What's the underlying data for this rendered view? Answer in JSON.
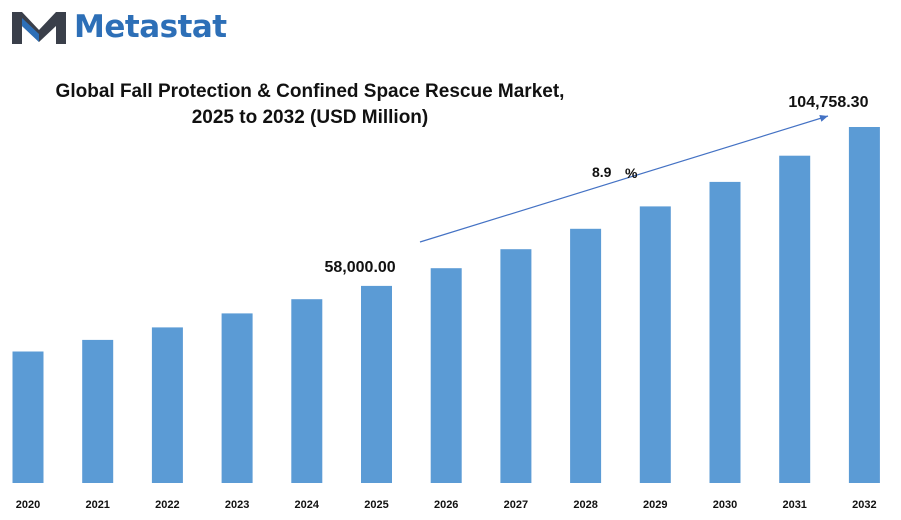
{
  "brand": {
    "name": "Metastat",
    "logo_icon": "metastat-m-logo-icon",
    "text_color": "#2d6fb7"
  },
  "chart_data": {
    "type": "bar",
    "title_lines": [
      "Global Fall Protection & Confined Space Rescue Market,",
      "2025 to 2032 (USD Million)"
    ],
    "categories": [
      "2020",
      "2021",
      "2022",
      "2023",
      "2024",
      "2025",
      "2026",
      "2027",
      "2028",
      "2029",
      "2030",
      "2031",
      "2032"
    ],
    "values": [
      38700,
      42100,
      45800,
      49900,
      54100,
      58000,
      63200,
      68800,
      74800,
      81400,
      88600,
      96300,
      104758.3
    ],
    "annotations": {
      "start_label": "58,000.00",
      "end_label": "104,758.30",
      "cagr_value": "8.9",
      "cagr_unit": "%"
    },
    "bar_color": "#5b9bd5",
    "arrow_color": "#4472c4",
    "ylim": [
      0,
      110000
    ],
    "grid": false,
    "legend": "none"
  }
}
